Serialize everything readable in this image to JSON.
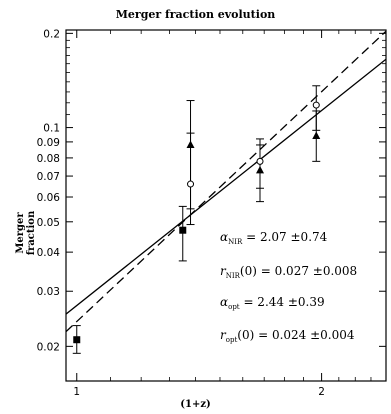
{
  "chart_data": {
    "type": "scatter",
    "title": "Merger fraction evolution",
    "xlabel": "(1+z)",
    "ylabel": "Merger fraction",
    "xscale": "log",
    "yscale": "log",
    "xlim": [
      0.97,
      2.4
    ],
    "ylim": [
      0.0155,
      0.205
    ],
    "xticks": [
      {
        "value": 1,
        "label": "1"
      },
      {
        "value": 2,
        "label": "2"
      }
    ],
    "yticks": [
      {
        "value": 0.02,
        "label": "0.02"
      },
      {
        "value": 0.03,
        "label": "0.03"
      },
      {
        "value": 0.04,
        "label": "0.04"
      },
      {
        "value": 0.05,
        "label": "0.05"
      },
      {
        "value": 0.06,
        "label": "0.06"
      },
      {
        "value": 0.07,
        "label": "0.07"
      },
      {
        "value": 0.08,
        "label": "0.08"
      },
      {
        "value": 0.09,
        "label": "0.09"
      },
      {
        "value": 0.1,
        "label": "0.1"
      },
      {
        "value": 0.2,
        "label": "0.2"
      }
    ],
    "grid": false,
    "series": [
      {
        "marker": "filled-square",
        "points": [
          {
            "x": 1.0,
            "y": 0.021,
            "ylo": 0.019,
            "yhi": 0.0233
          },
          {
            "x": 1.35,
            "y": 0.047,
            "ylo": 0.0375,
            "yhi": 0.056
          }
        ]
      },
      {
        "marker": "filled-triangle",
        "points": [
          {
            "x": 1.38,
            "y": 0.088,
            "ylo": 0.055,
            "yhi": 0.122
          },
          {
            "x": 1.68,
            "y": 0.073,
            "ylo": 0.058,
            "yhi": 0.088
          },
          {
            "x": 1.97,
            "y": 0.094,
            "ylo": 0.078,
            "yhi": 0.113
          }
        ]
      },
      {
        "marker": "open-circle",
        "points": [
          {
            "x": 1.38,
            "y": 0.066,
            "ylo": 0.049,
            "yhi": 0.096
          },
          {
            "x": 1.68,
            "y": 0.078,
            "ylo": 0.064,
            "yhi": 0.092
          },
          {
            "x": 1.97,
            "y": 0.118,
            "ylo": 0.098,
            "yhi": 0.136
          }
        ]
      }
    ],
    "fits": [
      {
        "style": "solid",
        "alpha": 2.07,
        "r0": 0.027
      },
      {
        "style": "dashed",
        "alpha": 2.44,
        "r0": 0.024
      }
    ],
    "annotations": [
      {
        "sym": "α",
        "sub": "NIR",
        "text": " = 2.07 ±0.74"
      },
      {
        "sym": "r",
        "sub": "NIR",
        "text": "(0) = 0.027 ±0.008"
      },
      {
        "sym": "α",
        "sub": "opt",
        "text": " = 2.44 ±0.39"
      },
      {
        "sym": "r",
        "sub": "opt",
        "text": "(0) = 0.024 ±0.004"
      }
    ]
  }
}
